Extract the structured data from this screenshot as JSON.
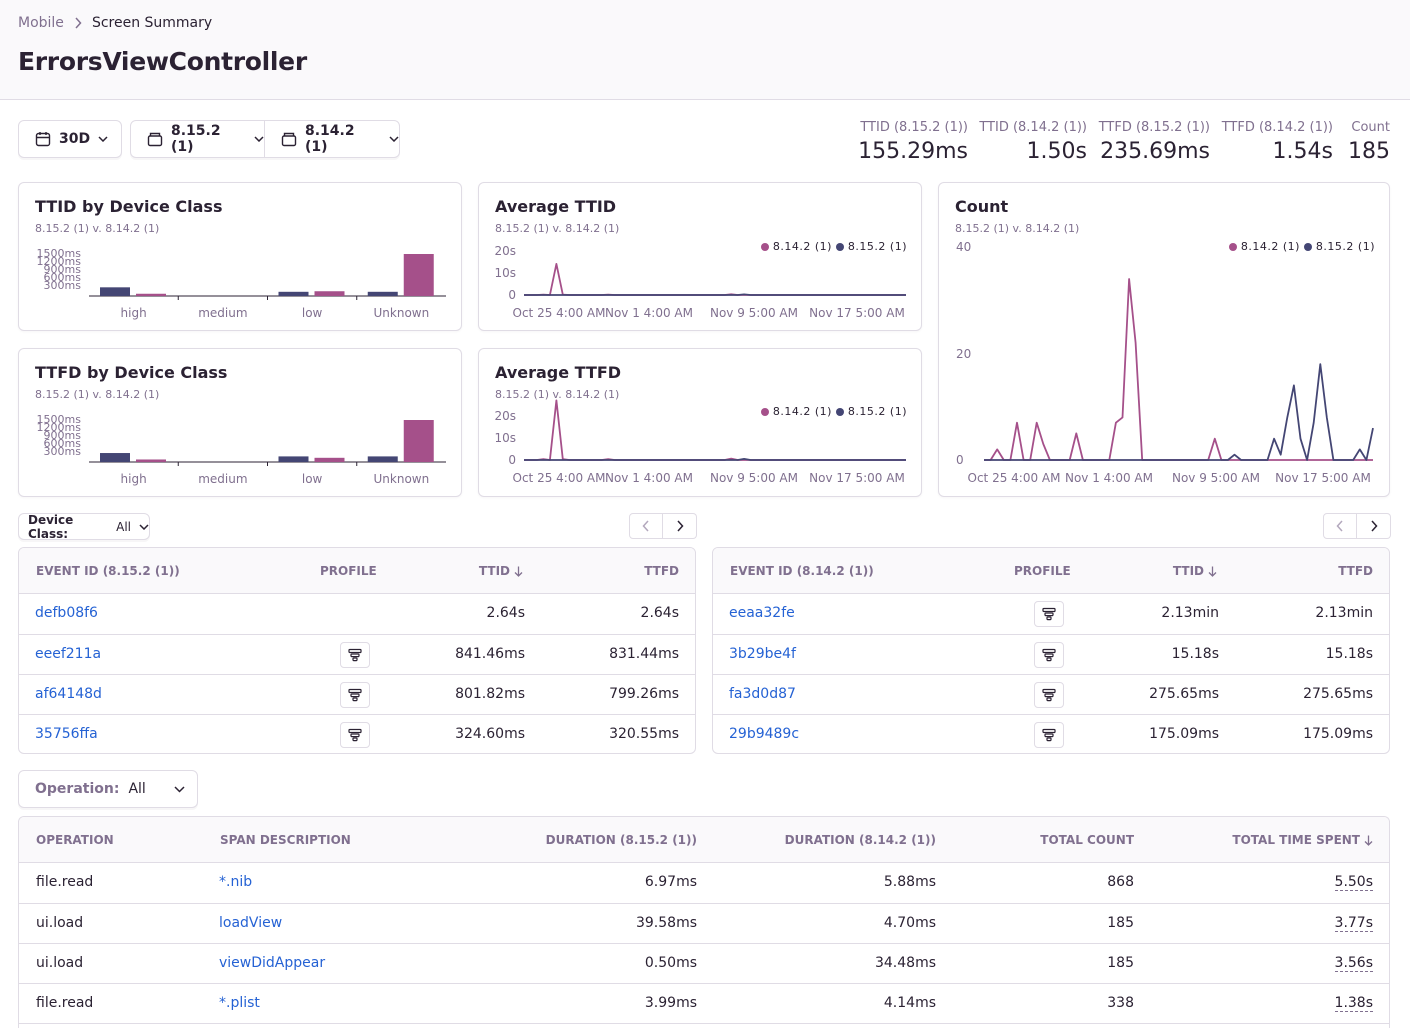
{
  "breadcrumb": {
    "parent": "Mobile",
    "current": "Screen Summary"
  },
  "page_title": "ErrorsViewController",
  "filters": {
    "period": "30D",
    "release_primary": "8.15.2 (1)",
    "release_secondary": "8.14.2 (1)"
  },
  "metrics": [
    {
      "label": "TTID (8.15.2 (1))",
      "value": "155.29ms"
    },
    {
      "label": "TTID (8.14.2 (1))",
      "value": "1.50s"
    },
    {
      "label": "TTFD (8.15.2 (1))",
      "value": "235.69ms"
    },
    {
      "label": "TTFD (8.14.2 (1))",
      "value": "1.54s"
    },
    {
      "label": "Count",
      "value": "185"
    }
  ],
  "colors": {
    "series_a": "#444674",
    "series_b": "#a5508a",
    "link": "#2562d4",
    "border": "#e0dce5",
    "muted": "#80708f"
  },
  "charts": {
    "subtitle": "8.15.2 (1) v. 8.14.2 (1)",
    "legend_a": "8.14.2 (1)",
    "legend_b": "8.15.2 (1)",
    "ttid_by_device": {
      "title": "TTID by Device Class"
    },
    "ttfd_by_device": {
      "title": "TTFD by Device Class"
    },
    "avg_ttid": {
      "title": "Average TTID"
    },
    "avg_ttfd": {
      "title": "Average TTFD"
    },
    "count": {
      "title": "Count"
    }
  },
  "chart_data": [
    {
      "type": "bar",
      "title": "TTID by Device Class",
      "categories": [
        "high",
        "medium",
        "low",
        "Unknown"
      ],
      "ytick_labels": [
        "1500ms",
        "1200ms",
        "900ms",
        "600ms",
        "300ms"
      ],
      "ylim": [
        0,
        1500
      ],
      "series": [
        {
          "name": "8.15.2 (1)",
          "values": [
            310,
            0,
            150,
            150
          ]
        },
        {
          "name": "8.14.2 (1)",
          "values": [
            80,
            0,
            170,
            1500
          ]
        }
      ]
    },
    {
      "type": "bar",
      "title": "TTFD by Device Class",
      "categories": [
        "high",
        "medium",
        "low",
        "Unknown"
      ],
      "ytick_labels": [
        "1500ms",
        "1200ms",
        "900ms",
        "600ms",
        "300ms"
      ],
      "ylim": [
        0,
        1500
      ],
      "series": [
        {
          "name": "8.15.2 (1)",
          "values": [
            320,
            0,
            200,
            200
          ]
        },
        {
          "name": "8.14.2 (1)",
          "values": [
            90,
            0,
            150,
            1500
          ]
        }
      ]
    },
    {
      "type": "line",
      "title": "Average TTID",
      "ytick_labels": [
        "20s",
        "10s",
        "0"
      ],
      "ylim": [
        0,
        25
      ],
      "xtick_labels": [
        "Oct 25 4:00 AM",
        "Nov 1 4:00 AM",
        "Nov 9 5:00 AM",
        "Nov 17 5:00 AM"
      ],
      "series": [
        {
          "name": "8.14.2 (1)",
          "values": [
            0,
            0,
            0,
            0.3,
            0,
            21,
            0.3,
            0,
            0,
            0,
            0,
            0,
            0,
            0.3,
            0,
            0,
            0,
            0,
            0,
            0,
            0,
            0,
            0,
            0,
            0,
            0,
            0,
            0,
            0,
            0,
            0,
            0,
            0.5,
            0,
            0,
            0,
            0,
            0,
            0,
            0,
            0,
            0,
            0,
            0,
            0,
            0,
            0,
            0,
            0,
            0,
            0,
            0,
            0,
            0,
            0,
            0,
            0,
            0,
            0,
            0
          ]
        },
        {
          "name": "8.15.2 (1)",
          "values": [
            0,
            0,
            0,
            0,
            0,
            0,
            0,
            0,
            0,
            0,
            0,
            0,
            0,
            0,
            0,
            0,
            0,
            0,
            0,
            0,
            0,
            0,
            0,
            0,
            0,
            0,
            0,
            0,
            0,
            0,
            0,
            0,
            0,
            0,
            0.4,
            0,
            0,
            0,
            0,
            0,
            0,
            0,
            0,
            0,
            0,
            0,
            0,
            0,
            0,
            0,
            0,
            0,
            0,
            0,
            0,
            0,
            0,
            0,
            0,
            0
          ]
        }
      ]
    },
    {
      "type": "line",
      "title": "Average TTFD",
      "ytick_labels": [
        "20s",
        "10s",
        "0"
      ],
      "ylim": [
        0,
        25
      ],
      "xtick_labels": [
        "Oct 25 4:00 AM",
        "Nov 1 4:00 AM",
        "Nov 9 5:00 AM",
        "Nov 17 5:00 AM"
      ],
      "series": [
        {
          "name": "8.14.2 (1)",
          "values": [
            0,
            0,
            0,
            0.3,
            0,
            21,
            0.3,
            0,
            0,
            0,
            0,
            0,
            0,
            0.3,
            0,
            0,
            0,
            0,
            0,
            0,
            0,
            0,
            0,
            0,
            0,
            0,
            0,
            0,
            0,
            0,
            0,
            0,
            0.5,
            0,
            0,
            0,
            0,
            0,
            0,
            0,
            0,
            0,
            0,
            0,
            0,
            0,
            0,
            0,
            0,
            0,
            0,
            0,
            0,
            0,
            0,
            0,
            0,
            0,
            0,
            0
          ]
        },
        {
          "name": "8.15.2 (1)",
          "values": [
            0,
            0,
            0,
            0,
            0,
            0,
            0,
            0,
            0,
            0,
            0,
            0,
            0,
            0,
            0,
            0,
            0,
            0,
            0,
            0,
            0,
            0,
            0,
            0,
            0,
            0,
            0,
            0,
            0,
            0,
            0,
            0,
            0,
            0,
            0.4,
            0,
            0,
            0,
            0,
            0,
            0,
            0,
            0,
            0,
            0,
            0,
            0,
            0,
            0,
            0,
            0,
            0,
            0,
            0,
            0,
            0,
            0,
            0,
            0,
            0
          ]
        }
      ]
    },
    {
      "type": "line",
      "title": "Count",
      "ytick_labels": [
        "40",
        "20",
        "0"
      ],
      "ylim": [
        0,
        40
      ],
      "xtick_labels": [
        "Oct 25 4:00 AM",
        "Nov 1 4:00 AM",
        "Nov 9 5:00 AM",
        "Nov 17 5:00 AM"
      ],
      "series": [
        {
          "name": "8.14.2 (1)",
          "values": [
            0,
            0,
            2,
            0,
            0,
            7,
            0,
            0,
            7,
            3,
            0,
            0,
            0,
            0,
            5,
            0,
            0,
            0,
            0,
            0,
            7,
            8,
            34,
            22,
            0,
            0,
            0,
            0,
            0,
            0,
            0,
            0,
            0,
            0,
            0,
            4,
            0,
            0,
            0,
            0,
            0,
            0,
            0,
            0,
            0,
            0,
            0,
            0,
            0,
            0,
            0,
            0,
            0,
            0,
            0,
            0,
            0,
            0,
            0,
            0
          ]
        },
        {
          "name": "8.15.2 (1)",
          "values": [
            0,
            0,
            0,
            0,
            0,
            0,
            0,
            0,
            0,
            0,
            0,
            0,
            0,
            0,
            0,
            0,
            0,
            0,
            0,
            0,
            0,
            0,
            0,
            0,
            0,
            0,
            0,
            0,
            0,
            0,
            0,
            0,
            0,
            0,
            0,
            0,
            0,
            0,
            1,
            0,
            0,
            0,
            0,
            0,
            4,
            1,
            8,
            14,
            4,
            0,
            7,
            18,
            8,
            0,
            0,
            0,
            0,
            2,
            0,
            6
          ]
        }
      ]
    }
  ],
  "device_class_filter": {
    "label": "Device Class:",
    "value": "All"
  },
  "events_left": {
    "headers": [
      "EVENT ID (8.15.2 (1))",
      "PROFILE",
      "TTID",
      "TTFD"
    ],
    "rows": [
      {
        "id": "defb08f6",
        "profile": false,
        "ttid": "2.64s",
        "ttfd": "2.64s"
      },
      {
        "id": "eeef211a",
        "profile": true,
        "ttid": "841.46ms",
        "ttfd": "831.44ms"
      },
      {
        "id": "af64148d",
        "profile": true,
        "ttid": "801.82ms",
        "ttfd": "799.26ms"
      },
      {
        "id": "35756ffa",
        "profile": true,
        "ttid": "324.60ms",
        "ttfd": "320.55ms"
      }
    ]
  },
  "events_right": {
    "headers": [
      "EVENT ID (8.14.2 (1))",
      "PROFILE",
      "TTID",
      "TTFD"
    ],
    "rows": [
      {
        "id": "eeaa32fe",
        "profile": true,
        "ttid": "2.13min",
        "ttfd": "2.13min"
      },
      {
        "id": "3b29be4f",
        "profile": true,
        "ttid": "15.18s",
        "ttfd": "15.18s"
      },
      {
        "id": "fa3d0d87",
        "profile": true,
        "ttid": "275.65ms",
        "ttfd": "275.65ms"
      },
      {
        "id": "29b9489c",
        "profile": true,
        "ttid": "175.09ms",
        "ttfd": "175.09ms"
      }
    ]
  },
  "operation_filter": {
    "label": "Operation:",
    "value": "All"
  },
  "spans": {
    "headers": [
      "OPERATION",
      "SPAN DESCRIPTION",
      "DURATION (8.15.2 (1))",
      "DURATION (8.14.2 (1))",
      "TOTAL COUNT",
      "TOTAL TIME SPENT"
    ],
    "rows": [
      {
        "op": "file.read",
        "desc": "*.nib",
        "dur_a": "6.97ms",
        "dur_b": "5.88ms",
        "count": "868",
        "total": "5.50s"
      },
      {
        "op": "ui.load",
        "desc": "loadView",
        "dur_a": "39.58ms",
        "dur_b": "4.70ms",
        "count": "185",
        "total": "3.77s"
      },
      {
        "op": "ui.load",
        "desc": "viewDidAppear",
        "dur_a": "0.50ms",
        "dur_b": "34.48ms",
        "count": "185",
        "total": "3.56s"
      },
      {
        "op": "file.read",
        "desc": "*.plist",
        "dur_a": "3.99ms",
        "dur_b": "4.14ms",
        "count": "338",
        "total": "1.38s"
      }
    ]
  }
}
